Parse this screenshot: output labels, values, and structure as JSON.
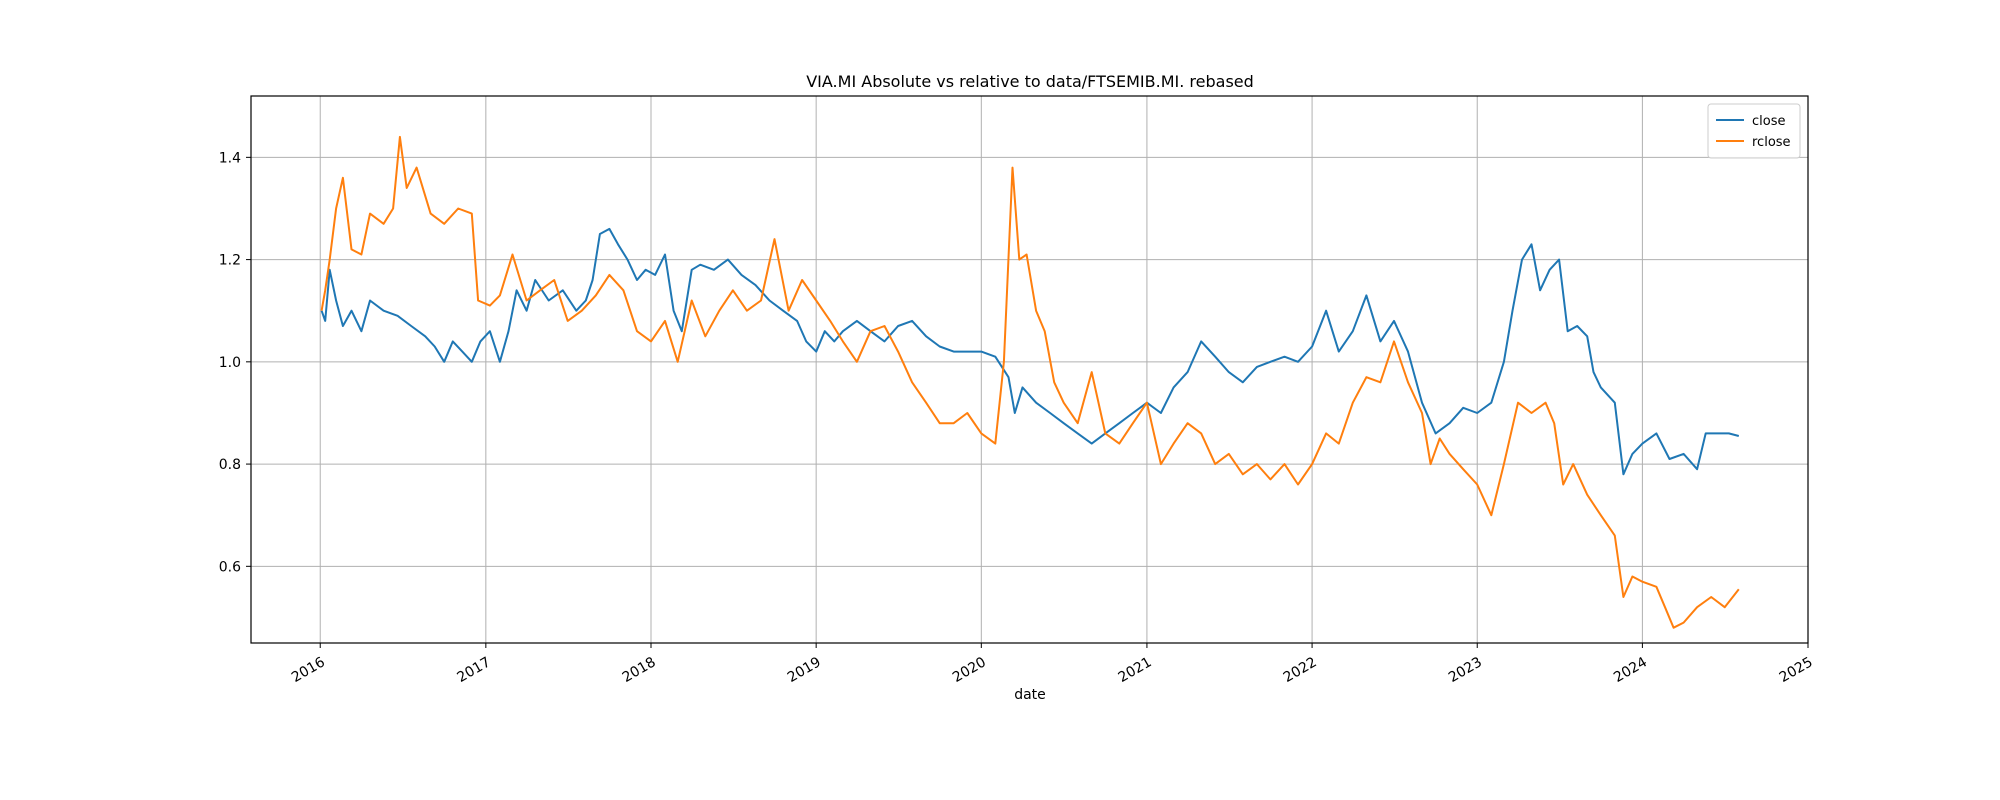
{
  "chart_data": {
    "type": "line",
    "title": "VIA.MI Absolute vs relative to data/FTSEMIB.MI. rebased",
    "xlabel": "date",
    "ylabel": "",
    "x_ticks": [
      "2016",
      "2017",
      "2018",
      "2019",
      "2020",
      "2021",
      "2022",
      "2023",
      "2024",
      "2025"
    ],
    "y_ticks": [
      "0.6",
      "0.8",
      "1.0",
      "1.2",
      "1.4"
    ],
    "xlim": [
      "2015-08-01",
      "2025-01-01"
    ],
    "ylim": [
      0.45,
      1.52
    ],
    "grid": true,
    "legend_position": "top-right",
    "series": [
      {
        "name": "close",
        "color": "#1f77b4",
        "points": [
          [
            "2016-01-04",
            1.1
          ],
          [
            "2016-01-12",
            1.08
          ],
          [
            "2016-01-22",
            1.18
          ],
          [
            "2016-02-05",
            1.12
          ],
          [
            "2016-02-20",
            1.07
          ],
          [
            "2016-03-10",
            1.1
          ],
          [
            "2016-04-01",
            1.06
          ],
          [
            "2016-04-20",
            1.12
          ],
          [
            "2016-05-20",
            1.1
          ],
          [
            "2016-06-20",
            1.09
          ],
          [
            "2016-07-20",
            1.07
          ],
          [
            "2016-08-20",
            1.05
          ],
          [
            "2016-09-10",
            1.03
          ],
          [
            "2016-10-01",
            1.0
          ],
          [
            "2016-10-20",
            1.04
          ],
          [
            "2016-11-10",
            1.02
          ],
          [
            "2016-12-01",
            1.0
          ],
          [
            "2016-12-20",
            1.04
          ],
          [
            "2017-01-10",
            1.06
          ],
          [
            "2017-02-01",
            1.0
          ],
          [
            "2017-02-20",
            1.06
          ],
          [
            "2017-03-10",
            1.14
          ],
          [
            "2017-04-01",
            1.1
          ],
          [
            "2017-04-20",
            1.16
          ],
          [
            "2017-05-20",
            1.12
          ],
          [
            "2017-06-20",
            1.14
          ],
          [
            "2017-07-20",
            1.1
          ],
          [
            "2017-08-10",
            1.12
          ],
          [
            "2017-08-25",
            1.16
          ],
          [
            "2017-09-10",
            1.25
          ],
          [
            "2017-10-01",
            1.26
          ],
          [
            "2017-10-20",
            1.23
          ],
          [
            "2017-11-10",
            1.2
          ],
          [
            "2017-12-01",
            1.16
          ],
          [
            "2017-12-20",
            1.18
          ],
          [
            "2018-01-10",
            1.17
          ],
          [
            "2018-02-01",
            1.21
          ],
          [
            "2018-02-20",
            1.1
          ],
          [
            "2018-03-10",
            1.06
          ],
          [
            "2018-04-01",
            1.18
          ],
          [
            "2018-04-20",
            1.19
          ],
          [
            "2018-05-20",
            1.18
          ],
          [
            "2018-06-20",
            1.2
          ],
          [
            "2018-07-20",
            1.17
          ],
          [
            "2018-08-20",
            1.15
          ],
          [
            "2018-09-20",
            1.12
          ],
          [
            "2018-10-20",
            1.1
          ],
          [
            "2018-11-20",
            1.08
          ],
          [
            "2018-12-10",
            1.04
          ],
          [
            "2019-01-01",
            1.02
          ],
          [
            "2019-01-20",
            1.06
          ],
          [
            "2019-02-10",
            1.04
          ],
          [
            "2019-03-01",
            1.06
          ],
          [
            "2019-04-01",
            1.08
          ],
          [
            "2019-05-01",
            1.06
          ],
          [
            "2019-06-01",
            1.04
          ],
          [
            "2019-07-01",
            1.07
          ],
          [
            "2019-08-01",
            1.08
          ],
          [
            "2019-09-01",
            1.05
          ],
          [
            "2019-10-01",
            1.03
          ],
          [
            "2019-11-01",
            1.02
          ],
          [
            "2019-12-01",
            1.02
          ],
          [
            "2020-01-01",
            1.02
          ],
          [
            "2020-02-01",
            1.01
          ],
          [
            "2020-03-01",
            0.97
          ],
          [
            "2020-03-15",
            0.9
          ],
          [
            "2020-04-01",
            0.95
          ],
          [
            "2020-05-01",
            0.92
          ],
          [
            "2020-06-01",
            0.9
          ],
          [
            "2020-07-01",
            0.88
          ],
          [
            "2020-08-01",
            0.86
          ],
          [
            "2020-09-01",
            0.84
          ],
          [
            "2020-10-01",
            0.86
          ],
          [
            "2020-11-01",
            0.88
          ],
          [
            "2020-12-01",
            0.9
          ],
          [
            "2021-01-01",
            0.92
          ],
          [
            "2021-02-01",
            0.9
          ],
          [
            "2021-03-01",
            0.95
          ],
          [
            "2021-04-01",
            0.98
          ],
          [
            "2021-05-01",
            1.04
          ],
          [
            "2021-06-01",
            1.01
          ],
          [
            "2021-07-01",
            0.98
          ],
          [
            "2021-08-01",
            0.96
          ],
          [
            "2021-09-01",
            0.99
          ],
          [
            "2021-10-01",
            1.0
          ],
          [
            "2021-11-01",
            1.01
          ],
          [
            "2021-12-01",
            1.0
          ],
          [
            "2022-01-01",
            1.03
          ],
          [
            "2022-02-01",
            1.1
          ],
          [
            "2022-03-01",
            1.02
          ],
          [
            "2022-04-01",
            1.06
          ],
          [
            "2022-05-01",
            1.13
          ],
          [
            "2022-06-01",
            1.04
          ],
          [
            "2022-07-01",
            1.08
          ],
          [
            "2022-08-01",
            1.02
          ],
          [
            "2022-09-01",
            0.92
          ],
          [
            "2022-10-01",
            0.86
          ],
          [
            "2022-11-01",
            0.88
          ],
          [
            "2022-12-01",
            0.91
          ],
          [
            "2023-01-01",
            0.9
          ],
          [
            "2023-02-01",
            0.92
          ],
          [
            "2023-03-01",
            1.0
          ],
          [
            "2023-03-20",
            1.1
          ],
          [
            "2023-04-10",
            1.2
          ],
          [
            "2023-05-01",
            1.23
          ],
          [
            "2023-05-20",
            1.14
          ],
          [
            "2023-06-10",
            1.18
          ],
          [
            "2023-07-01",
            1.2
          ],
          [
            "2023-07-20",
            1.06
          ],
          [
            "2023-08-10",
            1.07
          ],
          [
            "2023-09-01",
            1.05
          ],
          [
            "2023-09-15",
            0.98
          ],
          [
            "2023-10-01",
            0.95
          ],
          [
            "2023-11-01",
            0.92
          ],
          [
            "2023-11-20",
            0.78
          ],
          [
            "2023-12-10",
            0.82
          ],
          [
            "2024-01-01",
            0.84
          ],
          [
            "2024-02-01",
            0.86
          ],
          [
            "2024-03-01",
            0.81
          ],
          [
            "2024-04-01",
            0.82
          ],
          [
            "2024-05-01",
            0.79
          ],
          [
            "2024-05-20",
            0.86
          ],
          [
            "2024-06-10",
            0.86
          ],
          [
            "2024-07-10",
            0.86
          ],
          [
            "2024-08-01",
            0.855
          ]
        ]
      },
      {
        "name": "rclose",
        "color": "#ff7f0e",
        "points": [
          [
            "2016-01-04",
            1.1
          ],
          [
            "2016-01-12",
            1.14
          ],
          [
            "2016-01-22",
            1.2
          ],
          [
            "2016-02-05",
            1.3
          ],
          [
            "2016-02-20",
            1.36
          ],
          [
            "2016-03-10",
            1.22
          ],
          [
            "2016-04-01",
            1.21
          ],
          [
            "2016-04-20",
            1.29
          ],
          [
            "2016-05-20",
            1.27
          ],
          [
            "2016-06-10",
            1.3
          ],
          [
            "2016-06-25",
            1.44
          ],
          [
            "2016-07-10",
            1.34
          ],
          [
            "2016-08-01",
            1.38
          ],
          [
            "2016-09-01",
            1.29
          ],
          [
            "2016-10-01",
            1.27
          ],
          [
            "2016-11-01",
            1.3
          ],
          [
            "2016-12-01",
            1.29
          ],
          [
            "2016-12-15",
            1.12
          ],
          [
            "2017-01-10",
            1.11
          ],
          [
            "2017-02-01",
            1.13
          ],
          [
            "2017-03-01",
            1.21
          ],
          [
            "2017-04-01",
            1.12
          ],
          [
            "2017-05-01",
            1.14
          ],
          [
            "2017-06-01",
            1.16
          ],
          [
            "2017-07-01",
            1.08
          ],
          [
            "2017-08-01",
            1.1
          ],
          [
            "2017-09-01",
            1.13
          ],
          [
            "2017-10-01",
            1.17
          ],
          [
            "2017-11-01",
            1.14
          ],
          [
            "2017-12-01",
            1.06
          ],
          [
            "2018-01-01",
            1.04
          ],
          [
            "2018-02-01",
            1.08
          ],
          [
            "2018-03-01",
            1.0
          ],
          [
            "2018-04-01",
            1.12
          ],
          [
            "2018-05-01",
            1.05
          ],
          [
            "2018-06-01",
            1.1
          ],
          [
            "2018-07-01",
            1.14
          ],
          [
            "2018-08-01",
            1.1
          ],
          [
            "2018-09-01",
            1.12
          ],
          [
            "2018-10-01",
            1.24
          ],
          [
            "2018-11-01",
            1.1
          ],
          [
            "2018-12-01",
            1.16
          ],
          [
            "2019-01-01",
            1.12
          ],
          [
            "2019-02-01",
            1.08
          ],
          [
            "2019-03-01",
            1.04
          ],
          [
            "2019-04-01",
            1.0
          ],
          [
            "2019-05-01",
            1.06
          ],
          [
            "2019-06-01",
            1.07
          ],
          [
            "2019-07-01",
            1.02
          ],
          [
            "2019-08-01",
            0.96
          ],
          [
            "2019-09-01",
            0.92
          ],
          [
            "2019-10-01",
            0.88
          ],
          [
            "2019-11-01",
            0.88
          ],
          [
            "2019-12-01",
            0.9
          ],
          [
            "2020-01-01",
            0.86
          ],
          [
            "2020-02-01",
            0.84
          ],
          [
            "2020-02-20",
            1.0
          ],
          [
            "2020-03-10",
            1.38
          ],
          [
            "2020-03-25",
            1.2
          ],
          [
            "2020-04-10",
            1.21
          ],
          [
            "2020-05-01",
            1.1
          ],
          [
            "2020-05-20",
            1.06
          ],
          [
            "2020-06-10",
            0.96
          ],
          [
            "2020-07-01",
            0.92
          ],
          [
            "2020-08-01",
            0.88
          ],
          [
            "2020-09-01",
            0.98
          ],
          [
            "2020-10-01",
            0.86
          ],
          [
            "2020-11-01",
            0.84
          ],
          [
            "2020-12-01",
            0.88
          ],
          [
            "2021-01-01",
            0.92
          ],
          [
            "2021-02-01",
            0.8
          ],
          [
            "2021-03-01",
            0.84
          ],
          [
            "2021-04-01",
            0.88
          ],
          [
            "2021-05-01",
            0.86
          ],
          [
            "2021-06-01",
            0.8
          ],
          [
            "2021-07-01",
            0.82
          ],
          [
            "2021-08-01",
            0.78
          ],
          [
            "2021-09-01",
            0.8
          ],
          [
            "2021-10-01",
            0.77
          ],
          [
            "2021-11-01",
            0.8
          ],
          [
            "2021-12-01",
            0.76
          ],
          [
            "2022-01-01",
            0.8
          ],
          [
            "2022-02-01",
            0.86
          ],
          [
            "2022-03-01",
            0.84
          ],
          [
            "2022-04-01",
            0.92
          ],
          [
            "2022-05-01",
            0.97
          ],
          [
            "2022-06-01",
            0.96
          ],
          [
            "2022-07-01",
            1.04
          ],
          [
            "2022-08-01",
            0.96
          ],
          [
            "2022-09-01",
            0.9
          ],
          [
            "2022-09-20",
            0.8
          ],
          [
            "2022-10-10",
            0.85
          ],
          [
            "2022-11-01",
            0.82
          ],
          [
            "2022-12-01",
            0.79
          ],
          [
            "2023-01-01",
            0.76
          ],
          [
            "2023-02-01",
            0.7
          ],
          [
            "2023-03-01",
            0.8
          ],
          [
            "2023-04-01",
            0.92
          ],
          [
            "2023-05-01",
            0.9
          ],
          [
            "2023-06-01",
            0.92
          ],
          [
            "2023-06-20",
            0.88
          ],
          [
            "2023-07-10",
            0.76
          ],
          [
            "2023-08-01",
            0.8
          ],
          [
            "2023-09-01",
            0.74
          ],
          [
            "2023-10-01",
            0.7
          ],
          [
            "2023-11-01",
            0.66
          ],
          [
            "2023-11-20",
            0.54
          ],
          [
            "2023-12-10",
            0.58
          ],
          [
            "2024-01-01",
            0.57
          ],
          [
            "2024-02-01",
            0.56
          ],
          [
            "2024-02-20",
            0.52
          ],
          [
            "2024-03-10",
            0.48
          ],
          [
            "2024-04-01",
            0.49
          ],
          [
            "2024-05-01",
            0.52
          ],
          [
            "2024-06-01",
            0.54
          ],
          [
            "2024-07-01",
            0.52
          ],
          [
            "2024-08-01",
            0.555
          ]
        ]
      }
    ]
  }
}
